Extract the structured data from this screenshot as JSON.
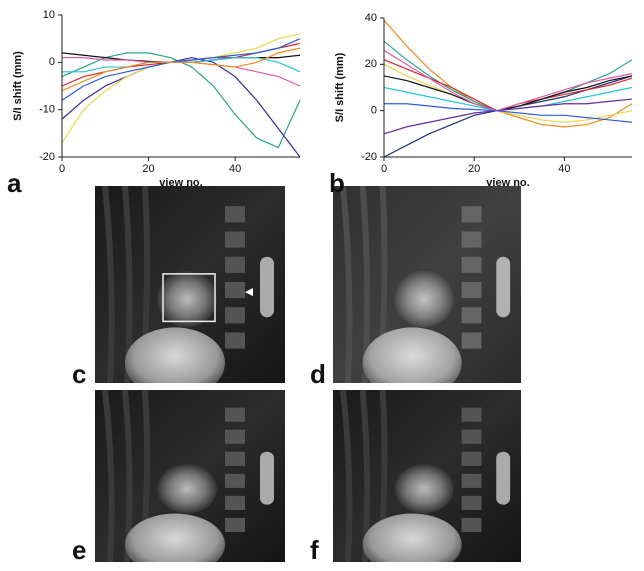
{
  "chart_data": [
    {
      "type": "line",
      "panel_label": "a",
      "xlabel": "view no.",
      "ylabel": "S/I shift (mm)",
      "x": [
        0,
        5,
        10,
        15,
        20,
        25,
        30,
        35,
        40,
        45,
        50,
        55
      ],
      "xlim": [
        0,
        55
      ],
      "xticks": [
        0,
        20,
        40
      ],
      "ylim": [
        -20,
        10
      ],
      "yticks": [
        -20,
        -10,
        0,
        10
      ],
      "series": [
        {
          "color": "#2aa58a",
          "values": [
            -3,
            -1,
            1,
            2,
            2,
            1,
            -1,
            -5,
            -11,
            -16,
            -18,
            -8
          ]
        },
        {
          "color": "#3b2a8f",
          "values": [
            -12,
            -8,
            -5,
            -3,
            -1,
            0,
            1,
            0,
            -3,
            -8,
            -14,
            -20
          ]
        },
        {
          "color": "#e8d84a",
          "values": [
            -17,
            -10,
            -6,
            -3,
            -1,
            0,
            0.5,
            1,
            2,
            3,
            5,
            6
          ]
        },
        {
          "color": "#111111",
          "values": [
            2,
            1.5,
            1,
            0.5,
            0.2,
            0,
            0,
            0.5,
            1,
            1,
            1,
            1.5
          ]
        },
        {
          "color": "#d8262c",
          "values": [
            -5,
            -3,
            -2,
            -1,
            -0.5,
            0,
            0.5,
            1,
            1,
            2,
            3,
            4
          ]
        },
        {
          "color": "#2b5fd9",
          "values": [
            -8,
            -5,
            -3,
            -2,
            -1,
            0,
            0.5,
            1,
            1.5,
            2,
            3,
            5
          ]
        },
        {
          "color": "#e05aa8",
          "values": [
            1,
            1,
            0.5,
            0.5,
            0,
            0,
            0,
            -0.5,
            -1,
            -2,
            -3,
            -5
          ]
        },
        {
          "color": "#27c3d6",
          "values": [
            -2,
            -2,
            -1,
            -1,
            0,
            0,
            0,
            0.5,
            1,
            1,
            0,
            -2
          ]
        },
        {
          "color": "#f08a1c",
          "values": [
            -6,
            -4,
            -2,
            -1,
            0,
            0,
            0,
            -0.5,
            -1,
            0,
            2,
            3
          ]
        }
      ]
    },
    {
      "type": "line",
      "panel_label": "b",
      "xlabel": "view no.",
      "ylabel": "S/I shift (mm)",
      "x": [
        0,
        5,
        10,
        15,
        20,
        25,
        30,
        35,
        40,
        45,
        50,
        55
      ],
      "xlim": [
        0,
        55
      ],
      "xticks": [
        0,
        20,
        40
      ],
      "ylim": [
        -20,
        40
      ],
      "yticks": [
        -20,
        0,
        20,
        40
      ],
      "series": [
        {
          "color": "#f08a1c",
          "values": [
            39,
            28,
            18,
            10,
            4,
            0,
            -3,
            -6,
            -7,
            -6,
            -3,
            3
          ]
        },
        {
          "color": "#1f2f7a",
          "values": [
            -20,
            -15,
            -10,
            -6,
            -2,
            0,
            2,
            4,
            6,
            9,
            12,
            15
          ]
        },
        {
          "color": "#2aa58a",
          "values": [
            30,
            22,
            15,
            9,
            4,
            0,
            2,
            5,
            8,
            12,
            16,
            22
          ]
        },
        {
          "color": "#d8262c",
          "values": [
            22,
            18,
            14,
            10,
            5,
            0,
            3,
            5,
            7,
            9,
            11,
            14
          ]
        },
        {
          "color": "#e8d84a",
          "values": [
            20,
            15,
            11,
            7,
            3,
            0,
            -2,
            -4,
            -5,
            -4,
            -2,
            0
          ]
        },
        {
          "color": "#111111",
          "values": [
            15,
            13,
            10,
            7,
            3,
            0,
            2,
            5,
            8,
            10,
            13,
            15
          ]
        },
        {
          "color": "#27c3d6",
          "values": [
            10,
            8,
            6,
            4,
            2,
            0,
            1,
            2,
            4,
            6,
            8,
            10
          ]
        },
        {
          "color": "#6a2a9a",
          "values": [
            -10,
            -7,
            -5,
            -3,
            -1,
            0,
            1,
            2,
            3,
            3,
            4,
            5
          ]
        },
        {
          "color": "#e05aa8",
          "values": [
            26,
            20,
            14,
            8,
            3,
            0,
            3,
            6,
            9,
            12,
            14,
            16
          ]
        },
        {
          "color": "#2b5fd9",
          "values": [
            3,
            3,
            2,
            1,
            0.5,
            0,
            -1,
            -2,
            -2,
            -3,
            -4,
            -5
          ]
        }
      ]
    }
  ],
  "images": [
    {
      "label": "c"
    },
    {
      "label": "d"
    },
    {
      "label": "e"
    },
    {
      "label": "f"
    }
  ]
}
